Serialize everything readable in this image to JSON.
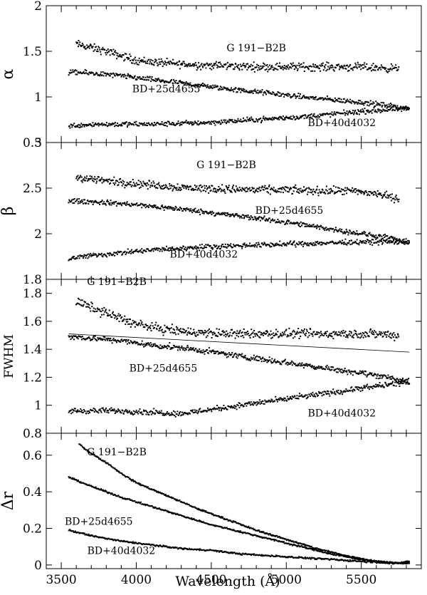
{
  "figure": {
    "xlabel": "Wavelength (Å)",
    "xlim": [
      3400,
      5900
    ],
    "xticks": [
      3500,
      4000,
      4500,
      5000,
      5500
    ]
  },
  "chart_data": [
    {
      "type": "scatter",
      "ylabel": "α",
      "ylim": [
        0.5,
        2.0
      ],
      "yticks": [
        0.5,
        1,
        1.5,
        2
      ],
      "ytick_labels": [
        "0.5",
        "1",
        "1.5",
        "2"
      ],
      "series": [
        {
          "name": "G 191−B2B",
          "x": [
            3600,
            3650,
            3700,
            3800,
            3900,
            4000,
            4200,
            4400,
            4600,
            4800,
            5000,
            5200,
            5400,
            5600,
            5750
          ],
          "y": [
            1.58,
            1.56,
            1.54,
            1.5,
            1.45,
            1.4,
            1.37,
            1.35,
            1.34,
            1.33,
            1.33,
            1.33,
            1.33,
            1.32,
            1.31
          ]
        },
        {
          "name": "BD+25d4655",
          "x": [
            3550,
            3700,
            3900,
            4100,
            4300,
            4500,
            4700,
            4900,
            5100,
            5300,
            5500,
            5700,
            5820
          ],
          "y": [
            1.27,
            1.26,
            1.23,
            1.19,
            1.15,
            1.11,
            1.07,
            1.04,
            1.0,
            0.97,
            0.94,
            0.9,
            0.87
          ]
        },
        {
          "name": "BD+40d4032",
          "x": [
            3550,
            3700,
            3900,
            4100,
            4300,
            4500,
            4700,
            4900,
            5100,
            5300,
            5500,
            5700,
            5820
          ],
          "y": [
            0.68,
            0.7,
            0.7,
            0.7,
            0.71,
            0.72,
            0.74,
            0.76,
            0.78,
            0.81,
            0.84,
            0.86,
            0.87
          ]
        }
      ],
      "annotations": [
        {
          "text": "G 191−B2B",
          "x": 4800,
          "y": 1.5
        },
        {
          "text": "BD+25d4655",
          "x": 4200,
          "y": 1.05
        },
        {
          "text": "BD+40d4032",
          "x": 5370,
          "y": 0.68
        }
      ]
    },
    {
      "type": "scatter",
      "ylabel": "β",
      "ylim": [
        1.5,
        3.0
      ],
      "yticks": [
        2,
        2.5,
        3
      ],
      "ytick_labels": [
        "2",
        "2.5",
        "3"
      ],
      "series": [
        {
          "name": "G 191−B2B",
          "x": [
            3600,
            3700,
            3800,
            4000,
            4200,
            4400,
            4600,
            4800,
            5000,
            5200,
            5400,
            5600,
            5750
          ],
          "y": [
            2.62,
            2.6,
            2.58,
            2.55,
            2.52,
            2.5,
            2.49,
            2.48,
            2.48,
            2.47,
            2.47,
            2.44,
            2.38
          ]
        },
        {
          "name": "BD+25d4655",
          "x": [
            3550,
            3700,
            3900,
            4100,
            4300,
            4500,
            4700,
            4900,
            5100,
            5300,
            5500,
            5700,
            5820
          ],
          "y": [
            2.36,
            2.35,
            2.33,
            2.3,
            2.27,
            2.23,
            2.19,
            2.15,
            2.1,
            2.05,
            2.0,
            1.95,
            1.9
          ]
        },
        {
          "name": "BD+40d4032",
          "x": [
            3550,
            3700,
            3900,
            4100,
            4300,
            4500,
            4700,
            4900,
            5100,
            5300,
            5500,
            5700,
            5820
          ],
          "y": [
            1.73,
            1.76,
            1.79,
            1.82,
            1.84,
            1.86,
            1.87,
            1.88,
            1.89,
            1.9,
            1.91,
            1.91,
            1.9
          ]
        }
      ],
      "annotations": [
        {
          "text": "G 191−B2B",
          "x": 4600,
          "y": 2.72
        },
        {
          "text": "BD+25d4655",
          "x": 5020,
          "y": 2.22
        },
        {
          "text": "BD+40d4032",
          "x": 4450,
          "y": 1.74
        }
      ]
    },
    {
      "type": "scatter",
      "ylabel": "FWHM",
      "ylim": [
        0.8,
        1.9
      ],
      "yticks": [
        0.8,
        1,
        1.2,
        1.4,
        1.6,
        1.8
      ],
      "ytick_labels": [
        "0.8",
        "1",
        "1.2",
        "1.4",
        "1.6",
        "1.8"
      ],
      "top_extra_label": "1.8",
      "reference_line": {
        "x": [
          3550,
          5820
        ],
        "y": [
          1.51,
          1.38
        ]
      },
      "series": [
        {
          "name": "G 191−B2B",
          "x": [
            3600,
            3700,
            3800,
            3900,
            4000,
            4200,
            4400,
            4600,
            4800,
            5000,
            5200,
            5400,
            5600,
            5750
          ],
          "y": [
            1.74,
            1.7,
            1.66,
            1.62,
            1.58,
            1.54,
            1.52,
            1.51,
            1.51,
            1.51,
            1.51,
            1.51,
            1.51,
            1.5
          ]
        },
        {
          "name": "BD+25d4655",
          "x": [
            3550,
            3700,
            3900,
            4100,
            4300,
            4500,
            4700,
            4900,
            5100,
            5300,
            5500,
            5700,
            5820
          ],
          "y": [
            1.49,
            1.48,
            1.46,
            1.43,
            1.41,
            1.38,
            1.35,
            1.32,
            1.29,
            1.26,
            1.23,
            1.2,
            1.15
          ]
        },
        {
          "name": "BD+40d4032",
          "x": [
            3550,
            3700,
            3900,
            4100,
            4300,
            4500,
            4700,
            4900,
            5100,
            5300,
            5500,
            5700,
            5820
          ],
          "y": [
            0.96,
            0.96,
            0.96,
            0.95,
            0.94,
            0.97,
            1.0,
            1.03,
            1.06,
            1.09,
            1.12,
            1.15,
            1.17
          ]
        }
      ],
      "annotations": [
        {
          "text": "G 191−B2B",
          "x": 3870,
          "y": 1.86
        },
        {
          "text": "BD+25d4655",
          "x": 4180,
          "y": 1.24
        },
        {
          "text": "BD+40d4032",
          "x": 5370,
          "y": 0.92
        }
      ]
    },
    {
      "type": "scatter",
      "ylabel": "Δr",
      "ylim": [
        -0.02,
        0.72
      ],
      "yticks": [
        0,
        0.2,
        0.4,
        0.6
      ],
      "ytick_labels": [
        "0",
        "0.2",
        "0.4",
        "0.6"
      ],
      "series": [
        {
          "name": "G 191−B2B",
          "x": [
            3620,
            3700,
            3800,
            3900,
            4000,
            4200,
            4400,
            4600,
            4800,
            5000,
            5200,
            5400,
            5600,
            5750,
            5820
          ],
          "y": [
            0.66,
            0.61,
            0.56,
            0.5,
            0.45,
            0.38,
            0.31,
            0.25,
            0.19,
            0.14,
            0.09,
            0.05,
            0.02,
            0.01,
            0.02
          ]
        },
        {
          "name": "BD+25d4655",
          "x": [
            3550,
            3700,
            3900,
            4100,
            4300,
            4500,
            4700,
            4900,
            5100,
            5300,
            5500,
            5700,
            5820
          ],
          "y": [
            0.48,
            0.43,
            0.37,
            0.32,
            0.27,
            0.22,
            0.18,
            0.14,
            0.1,
            0.06,
            0.03,
            0.01,
            0.01
          ]
        },
        {
          "name": "BD+40d4032",
          "x": [
            3550,
            3700,
            3900,
            4100,
            4300,
            4500,
            4700,
            4900,
            5100,
            5300,
            5500,
            5700,
            5820
          ],
          "y": [
            0.19,
            0.16,
            0.13,
            0.11,
            0.09,
            0.08,
            0.06,
            0.05,
            0.04,
            0.03,
            0.02,
            0.01,
            0.01
          ]
        }
      ],
      "annotations": [
        {
          "text": "G 191−B2B",
          "x": 3870,
          "y": 0.6
        },
        {
          "text": "BD+25d4655",
          "x": 3750,
          "y": 0.22
        },
        {
          "text": "BD+40d4032",
          "x": 3900,
          "y": 0.06
        }
      ]
    }
  ]
}
